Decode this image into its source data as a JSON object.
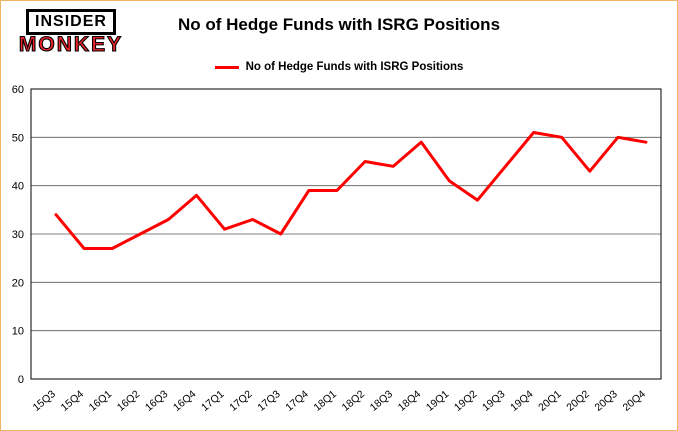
{
  "brand": {
    "line1": "INSIDER",
    "line2": "MONKEY"
  },
  "header": {
    "title": "No of Hedge Funds with ISRG Positions"
  },
  "legend": {
    "label": "No of Hedge Funds with ISRG Positions",
    "color": "#ff0000"
  },
  "chart_data": {
    "type": "line",
    "title": "No of Hedge Funds with ISRG Positions",
    "xlabel": "",
    "ylabel": "",
    "categories": [
      "15Q3",
      "15Q4",
      "16Q1",
      "16Q2",
      "16Q3",
      "16Q4",
      "17Q1",
      "17Q2",
      "17Q3",
      "17Q4",
      "18Q1",
      "18Q2",
      "18Q3",
      "18Q4",
      "19Q1",
      "19Q2",
      "19Q3",
      "19Q4",
      "20Q1",
      "20Q2",
      "20Q3",
      "20Q4"
    ],
    "series": [
      {
        "name": "No of Hedge Funds with ISRG Positions",
        "color": "#ff0000",
        "values": [
          34,
          27,
          27,
          30,
          33,
          38,
          31,
          33,
          30,
          39,
          39,
          45,
          44,
          49,
          41,
          37,
          44,
          51,
          50,
          43,
          50,
          49
        ]
      }
    ],
    "ylim": [
      0,
      60
    ],
    "yticks": [
      0,
      10,
      20,
      30,
      40,
      50,
      60
    ],
    "grid": true,
    "legend_position": "top-center"
  }
}
